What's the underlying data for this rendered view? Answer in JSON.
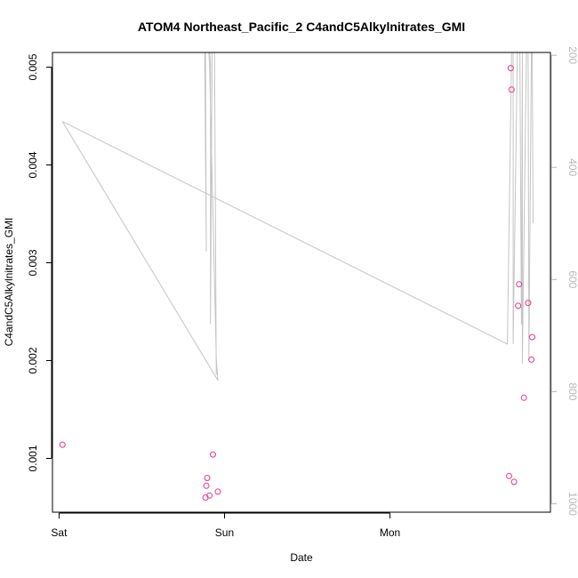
{
  "chart_data": {
    "type": "scatter",
    "title": "ATOM4 Northeast_Pacific_2 C4andC5Alkylnitrates_GMI",
    "xlabel": "Date",
    "ylabel": "C4andC5Alkylnitrates_GMI",
    "x_ticks": [
      {
        "label": "Sat",
        "value": 0.0
      },
      {
        "label": "Sun",
        "value": 1.0
      },
      {
        "label": "Mon",
        "value": 2.0
      }
    ],
    "xlim": [
      -0.04,
      2.97
    ],
    "y_ticks": [
      0.001,
      0.002,
      0.003,
      0.004,
      0.005
    ],
    "ylim": [
      0.00045,
      0.00515
    ],
    "y2_ticks": [
      200,
      400,
      600,
      800,
      1000
    ],
    "y2lim": [
      1015,
      195
    ],
    "points_color": "#e8348f",
    "line_color": "#c4c4c4",
    "points": [
      {
        "x": 0.02,
        "y": 0.00114
      },
      {
        "x": 0.89,
        "y": 0.00072
      },
      {
        "x": 0.895,
        "y": 0.0008
      },
      {
        "x": 0.885,
        "y": 0.0006
      },
      {
        "x": 0.91,
        "y": 0.00062
      },
      {
        "x": 0.93,
        "y": 0.00104
      },
      {
        "x": 0.96,
        "y": 0.00066
      },
      {
        "x": 2.72,
        "y": 0.00082
      },
      {
        "x": 2.75,
        "y": 0.00076
      },
      {
        "x": 2.73,
        "y": 0.00499
      },
      {
        "x": 2.735,
        "y": 0.00477
      },
      {
        "x": 2.78,
        "y": 0.00278
      },
      {
        "x": 2.775,
        "y": 0.00256
      },
      {
        "x": 2.81,
        "y": 0.00162
      },
      {
        "x": 2.835,
        "y": 0.00259
      },
      {
        "x": 2.855,
        "y": 0.00201
      },
      {
        "x": 2.86,
        "y": 0.00224
      }
    ],
    "pressure_line": [
      {
        "x": 0.02,
        "y": 318
      },
      {
        "x": 0.96,
        "y": 780
      },
      {
        "x": 0.95,
        "y": 740
      },
      {
        "x": 0.91,
        "y": 220
      },
      {
        "x": 0.905,
        "y": 160
      },
      {
        "x": 0.88,
        "y": 160
      },
      {
        "x": 0.88,
        "y": 160
      },
      {
        "x": 0.89,
        "y": 550
      },
      {
        "x": 0.885,
        "y": 160
      },
      {
        "x": 0.91,
        "y": 160
      },
      {
        "x": 0.915,
        "y": 210
      },
      {
        "x": 0.915,
        "y": 680
      },
      {
        "x": 0.925,
        "y": 160
      },
      {
        "x": 0.94,
        "y": 160
      },
      {
        "x": 0.95,
        "y": 770
      }
    ],
    "pressure_line_2": [
      {
        "x": 0.02,
        "y": 318
      },
      {
        "x": 2.71,
        "y": 715
      },
      {
        "x": 2.735,
        "y": 160
      },
      {
        "x": 2.745,
        "y": 160
      },
      {
        "x": 2.745,
        "y": 715
      },
      {
        "x": 2.77,
        "y": 160
      },
      {
        "x": 2.785,
        "y": 160
      },
      {
        "x": 2.795,
        "y": 680
      },
      {
        "x": 2.8,
        "y": 160
      },
      {
        "x": 2.8,
        "y": 160
      },
      {
        "x": 2.8,
        "y": 750
      },
      {
        "x": 2.825,
        "y": 160
      },
      {
        "x": 2.835,
        "y": 160
      },
      {
        "x": 2.84,
        "y": 740
      },
      {
        "x": 2.855,
        "y": 160
      },
      {
        "x": 2.86,
        "y": 160
      },
      {
        "x": 2.865,
        "y": 500
      }
    ]
  }
}
